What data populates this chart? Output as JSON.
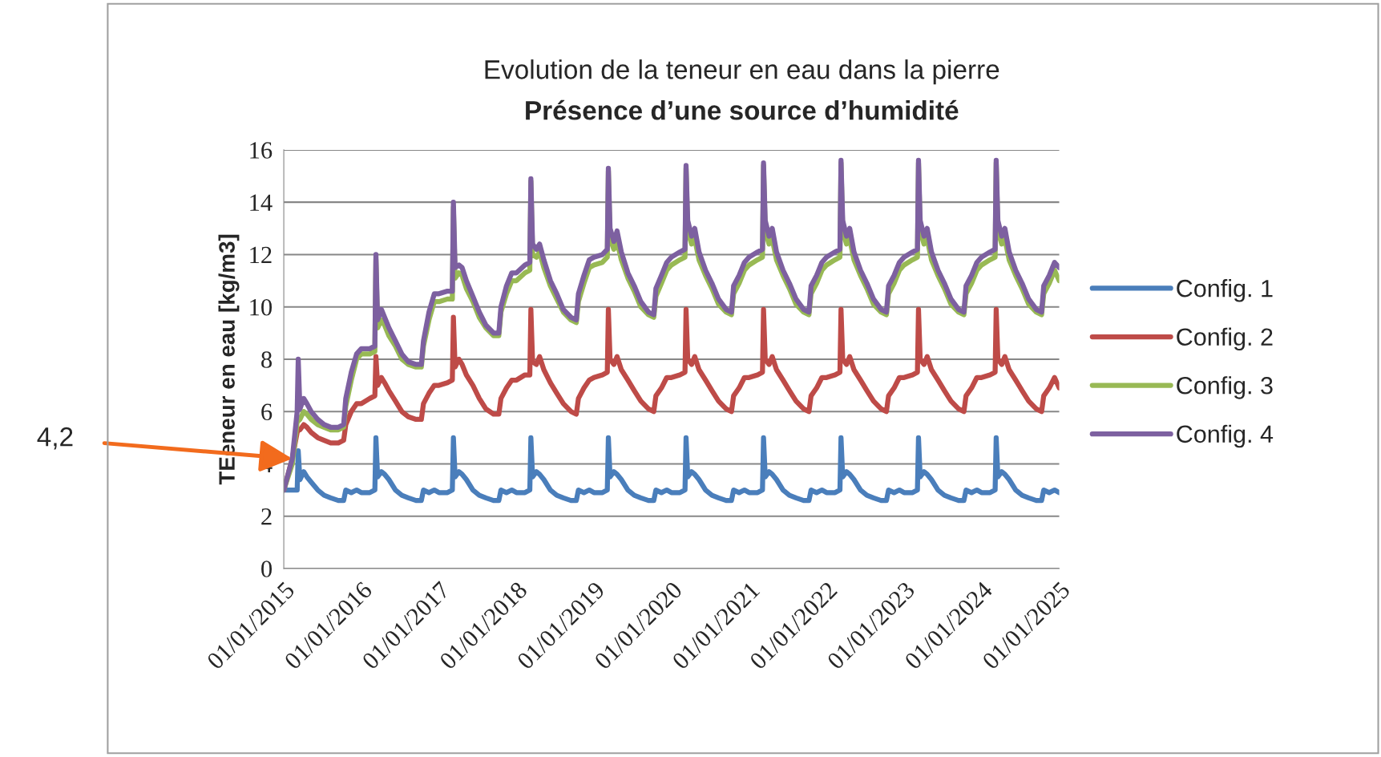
{
  "chart_data": {
    "type": "line",
    "title": "Evolution de la teneur en eau dans la pierre",
    "subtitle": "Présence d’une source d’humidité",
    "ylabel": "TEeneur en eau [kg/m3]",
    "x": [
      "2015-01-01",
      "2015-02-10",
      "2015-03-05",
      "2015-03-10",
      "2015-03-18",
      "2015-04-05",
      "2015-04-20",
      "2015-05-10",
      "2015-06-10",
      "2015-07-10",
      "2015-08-10",
      "2015-09-15",
      "2015-10-10",
      "2015-10-20",
      "2015-11-15",
      "2015-12-10",
      "2016-01-01",
      "2016-02-10",
      "2016-03-05",
      "2016-03-10",
      "2016-03-18",
      "2016-04-05",
      "2016-04-20",
      "2016-05-10",
      "2016-06-10",
      "2016-07-10",
      "2016-08-10",
      "2016-09-15",
      "2016-10-10",
      "2016-10-20",
      "2016-11-15",
      "2016-12-10",
      "2017-01-01",
      "2017-02-10",
      "2017-03-05",
      "2017-03-10",
      "2017-03-18",
      "2017-04-05",
      "2017-04-20",
      "2017-05-10",
      "2017-06-10",
      "2017-07-10",
      "2017-08-10",
      "2017-09-15",
      "2017-10-10",
      "2017-10-20",
      "2017-11-15",
      "2017-12-10",
      "2018-01-01",
      "2018-02-10",
      "2018-03-05",
      "2018-03-10",
      "2018-03-18",
      "2018-04-05",
      "2018-04-20",
      "2018-05-10",
      "2018-06-10",
      "2018-07-10",
      "2018-08-10",
      "2018-09-15",
      "2018-10-10",
      "2018-10-20",
      "2018-11-15",
      "2018-12-10",
      "2019-01-01",
      "2019-02-10",
      "2019-03-05",
      "2019-03-10",
      "2019-03-18",
      "2019-04-05",
      "2019-04-20",
      "2019-05-10",
      "2019-06-10",
      "2019-07-10",
      "2019-08-10",
      "2019-09-15",
      "2019-10-10",
      "2019-10-20",
      "2019-11-15",
      "2019-12-10",
      "2020-01-01",
      "2020-02-10",
      "2020-03-05",
      "2020-03-10",
      "2020-03-18",
      "2020-04-05",
      "2020-04-20",
      "2020-05-10",
      "2020-06-10",
      "2020-07-10",
      "2020-08-10",
      "2020-09-15",
      "2020-10-10",
      "2020-10-20",
      "2020-11-15",
      "2020-12-10",
      "2021-01-01",
      "2021-02-10",
      "2021-03-05",
      "2021-03-10",
      "2021-03-18",
      "2021-04-05",
      "2021-04-20",
      "2021-05-10",
      "2021-06-10",
      "2021-07-10",
      "2021-08-10",
      "2021-09-15",
      "2021-10-10",
      "2021-10-20",
      "2021-11-15",
      "2021-12-10",
      "2022-01-01",
      "2022-02-10",
      "2022-03-05",
      "2022-03-10",
      "2022-03-18",
      "2022-04-05",
      "2022-04-20",
      "2022-05-10",
      "2022-06-10",
      "2022-07-10",
      "2022-08-10",
      "2022-09-15",
      "2022-10-10",
      "2022-10-20",
      "2022-11-15",
      "2022-12-10",
      "2023-01-01",
      "2023-02-10",
      "2023-03-05",
      "2023-03-10",
      "2023-03-18",
      "2023-04-05",
      "2023-04-20",
      "2023-05-10",
      "2023-06-10",
      "2023-07-10",
      "2023-08-10",
      "2023-09-15",
      "2023-10-10",
      "2023-10-20",
      "2023-11-15",
      "2023-12-10",
      "2024-01-01",
      "2024-02-10",
      "2024-03-05",
      "2024-03-10",
      "2024-03-18",
      "2024-04-05",
      "2024-04-20",
      "2024-05-10",
      "2024-06-10",
      "2024-07-10",
      "2024-08-10",
      "2024-09-15",
      "2024-10-10",
      "2024-10-20",
      "2024-11-15",
      "2024-12-10",
      "2025-01-01"
    ],
    "series": [
      {
        "name": "Config. 1",
        "color": "#4a7ebb",
        "values": [
          3.0,
          3.0,
          3.0,
          4.5,
          3.4,
          3.7,
          3.5,
          3.3,
          3.0,
          2.8,
          2.7,
          2.6,
          2.6,
          3.0,
          2.9,
          3.0,
          2.9,
          2.9,
          3.0,
          5.0,
          3.5,
          3.7,
          3.6,
          3.4,
          3.0,
          2.8,
          2.7,
          2.6,
          2.6,
          3.0,
          2.9,
          3.0,
          2.9,
          2.9,
          3.0,
          5.0,
          3.5,
          3.7,
          3.6,
          3.4,
          3.0,
          2.8,
          2.7,
          2.6,
          2.6,
          3.0,
          2.9,
          3.0,
          2.9,
          2.9,
          3.0,
          5.0,
          3.5,
          3.7,
          3.6,
          3.4,
          3.0,
          2.8,
          2.7,
          2.6,
          2.6,
          3.0,
          2.9,
          3.0,
          2.9,
          2.9,
          3.0,
          5.0,
          3.5,
          3.7,
          3.6,
          3.4,
          3.0,
          2.8,
          2.7,
          2.6,
          2.6,
          3.0,
          2.9,
          3.0,
          2.9,
          2.9,
          3.0,
          5.0,
          3.5,
          3.7,
          3.6,
          3.4,
          3.0,
          2.8,
          2.7,
          2.6,
          2.6,
          3.0,
          2.9,
          3.0,
          2.9,
          2.9,
          3.0,
          5.0,
          3.5,
          3.7,
          3.6,
          3.4,
          3.0,
          2.8,
          2.7,
          2.6,
          2.6,
          3.0,
          2.9,
          3.0,
          2.9,
          2.9,
          3.0,
          5.0,
          3.5,
          3.7,
          3.6,
          3.4,
          3.0,
          2.8,
          2.7,
          2.6,
          2.6,
          3.0,
          2.9,
          3.0,
          2.9,
          2.9,
          3.0,
          5.0,
          3.5,
          3.7,
          3.6,
          3.4,
          3.0,
          2.8,
          2.7,
          2.6,
          2.6,
          3.0,
          2.9,
          3.0,
          2.9,
          2.9,
          3.0,
          5.0,
          3.5,
          3.7,
          3.6,
          3.4,
          3.0,
          2.8,
          2.7,
          2.6,
          2.6,
          3.0,
          2.9,
          3.0,
          2.9
        ]
      },
      {
        "name": "Config. 2",
        "color": "#be4b48",
        "values": [
          3.0,
          4.2,
          5.2,
          5.3,
          5.3,
          5.5,
          5.4,
          5.2,
          5.0,
          4.9,
          4.8,
          4.8,
          4.9,
          5.5,
          6.0,
          6.3,
          6.3,
          6.5,
          6.6,
          8.1,
          7.0,
          7.3,
          7.1,
          6.8,
          6.4,
          6.0,
          5.8,
          5.7,
          5.7,
          6.3,
          6.7,
          7.0,
          7.0,
          7.1,
          7.2,
          9.6,
          7.7,
          8.0,
          7.8,
          7.4,
          7.0,
          6.5,
          6.1,
          5.9,
          5.9,
          6.5,
          6.9,
          7.2,
          7.2,
          7.4,
          7.4,
          9.9,
          7.9,
          7.8,
          8.1,
          7.6,
          7.1,
          6.7,
          6.3,
          6.0,
          5.9,
          6.5,
          6.9,
          7.2,
          7.3,
          7.4,
          7.5,
          9.9,
          8.0,
          7.8,
          8.1,
          7.6,
          7.2,
          6.8,
          6.4,
          6.1,
          6.0,
          6.6,
          6.9,
          7.3,
          7.3,
          7.4,
          7.5,
          9.9,
          8.0,
          7.8,
          8.1,
          7.6,
          7.2,
          6.8,
          6.4,
          6.1,
          6.0,
          6.6,
          6.9,
          7.3,
          7.3,
          7.4,
          7.5,
          9.9,
          8.0,
          7.8,
          8.1,
          7.6,
          7.2,
          6.8,
          6.4,
          6.1,
          6.0,
          6.6,
          6.9,
          7.3,
          7.3,
          7.4,
          7.5,
          9.9,
          8.0,
          7.8,
          8.1,
          7.6,
          7.2,
          6.8,
          6.4,
          6.1,
          6.0,
          6.6,
          6.9,
          7.3,
          7.3,
          7.4,
          7.5,
          9.9,
          8.0,
          7.8,
          8.1,
          7.6,
          7.2,
          6.8,
          6.4,
          6.1,
          6.0,
          6.6,
          6.9,
          7.3,
          7.3,
          7.4,
          7.5,
          9.9,
          8.0,
          7.8,
          8.1,
          7.6,
          7.2,
          6.8,
          6.4,
          6.1,
          6.0,
          6.6,
          6.9,
          7.3,
          6.9
        ]
      },
      {
        "name": "Config. 3",
        "color": "#98b954",
        "values": [
          3.0,
          4.0,
          5.6,
          null,
          5.7,
          6.0,
          5.9,
          5.7,
          5.5,
          5.4,
          5.3,
          5.3,
          5.4,
          6.2,
          7.2,
          8.0,
          8.2,
          8.2,
          8.3,
          11.8,
          9.2,
          9.5,
          9.3,
          8.9,
          8.5,
          8.0,
          7.8,
          7.7,
          7.7,
          8.5,
          9.5,
          10.2,
          10.2,
          10.3,
          10.3,
          13.8,
          11.1,
          11.3,
          11.2,
          10.7,
          10.2,
          9.6,
          9.2,
          8.9,
          8.9,
          9.8,
          10.5,
          11.0,
          11.0,
          11.3,
          11.4,
          14.8,
          12.0,
          11.9,
          12.1,
          11.5,
          10.8,
          10.3,
          9.8,
          9.5,
          9.4,
          10.2,
          10.9,
          11.5,
          11.6,
          11.7,
          11.9,
          15.2,
          12.6,
          12.2,
          12.5,
          11.8,
          11.1,
          10.6,
          10.0,
          9.7,
          9.6,
          10.4,
          10.9,
          11.4,
          11.6,
          11.8,
          11.9,
          15.3,
          12.9,
          12.4,
          12.6,
          11.8,
          11.2,
          10.7,
          10.1,
          9.8,
          9.7,
          10.5,
          10.9,
          11.4,
          11.6,
          11.8,
          11.9,
          15.4,
          12.9,
          12.4,
          12.6,
          11.8,
          11.2,
          10.7,
          10.1,
          9.8,
          9.7,
          10.5,
          10.9,
          11.4,
          11.6,
          11.8,
          11.9,
          15.5,
          12.9,
          12.4,
          12.6,
          11.8,
          11.2,
          10.7,
          10.1,
          9.8,
          9.7,
          10.5,
          10.9,
          11.4,
          11.6,
          11.8,
          11.9,
          15.5,
          12.9,
          12.4,
          12.6,
          11.8,
          11.2,
          10.7,
          10.1,
          9.8,
          9.7,
          10.5,
          10.9,
          11.4,
          11.6,
          11.8,
          11.9,
          15.5,
          12.9,
          12.4,
          12.6,
          11.8,
          11.2,
          10.7,
          10.1,
          9.8,
          9.7,
          10.5,
          10.9,
          11.4,
          11.0
        ]
      },
      {
        "name": "Config. 4",
        "color": "#7d60a0",
        "values": [
          3.0,
          4.2,
          6.0,
          8.0,
          6.1,
          6.5,
          6.3,
          6.0,
          5.7,
          5.5,
          5.4,
          5.4,
          5.5,
          6.5,
          7.5,
          8.2,
          8.4,
          8.4,
          8.5,
          12.0,
          9.5,
          9.9,
          9.6,
          9.2,
          8.7,
          8.2,
          7.9,
          7.8,
          7.8,
          8.7,
          9.8,
          10.5,
          10.5,
          10.6,
          10.6,
          14.0,
          11.5,
          11.6,
          11.5,
          11.0,
          10.4,
          9.8,
          9.3,
          9.0,
          9.0,
          10.0,
          10.8,
          11.3,
          11.3,
          11.6,
          11.7,
          14.9,
          12.4,
          12.2,
          12.4,
          11.8,
          11.0,
          10.5,
          9.9,
          9.6,
          9.5,
          10.5,
          11.2,
          11.8,
          11.9,
          12.0,
          12.2,
          15.3,
          13.0,
          12.5,
          12.9,
          12.1,
          11.3,
          10.8,
          10.2,
          9.8,
          9.7,
          10.7,
          11.2,
          11.7,
          11.9,
          12.1,
          12.2,
          15.4,
          13.3,
          12.7,
          13.0,
          12.1,
          11.4,
          10.9,
          10.3,
          9.9,
          9.8,
          10.8,
          11.2,
          11.7,
          11.9,
          12.1,
          12.2,
          15.5,
          13.3,
          12.7,
          13.0,
          12.1,
          11.4,
          10.9,
          10.3,
          9.9,
          9.8,
          10.8,
          11.2,
          11.7,
          11.9,
          12.1,
          12.2,
          15.6,
          13.3,
          12.7,
          13.0,
          12.1,
          11.4,
          10.9,
          10.3,
          9.9,
          9.8,
          10.8,
          11.2,
          11.7,
          11.9,
          12.1,
          12.2,
          15.6,
          13.3,
          12.7,
          13.0,
          12.1,
          11.4,
          10.9,
          10.3,
          9.9,
          9.8,
          10.8,
          11.2,
          11.7,
          11.9,
          12.1,
          12.2,
          15.6,
          13.3,
          12.7,
          13.0,
          12.1,
          11.4,
          10.9,
          10.3,
          9.9,
          9.8,
          10.8,
          11.2,
          11.7,
          11.5
        ]
      }
    ],
    "xlim": [
      "2015-01-01",
      "2025-01-01"
    ],
    "xticks": [
      {
        "value": "2015-01-01",
        "label": "01/01/2015"
      },
      {
        "value": "2016-01-01",
        "label": "01/01/2016"
      },
      {
        "value": "2017-01-01",
        "label": "01/01/2017"
      },
      {
        "value": "2018-01-01",
        "label": "01/01/2018"
      },
      {
        "value": "2019-01-01",
        "label": "01/01/2019"
      },
      {
        "value": "2020-01-01",
        "label": "01/01/2020"
      },
      {
        "value": "2021-01-01",
        "label": "01/01/2021"
      },
      {
        "value": "2022-01-01",
        "label": "01/01/2022"
      },
      {
        "value": "2023-01-01",
        "label": "01/01/2023"
      },
      {
        "value": "2024-01-01",
        "label": "01/01/2024"
      },
      {
        "value": "2025-01-01",
        "label": "01/01/2025"
      }
    ],
    "ylim": [
      0,
      16
    ],
    "yticks": [
      0,
      2,
      4,
      6,
      8,
      10,
      12,
      14,
      16
    ],
    "grid": "y",
    "legend": "right",
    "marker": "none",
    "line_style": "solid",
    "annotations": [
      {
        "text": "4,2",
        "x": "2015-02-10",
        "y": 4.2
      }
    ]
  }
}
